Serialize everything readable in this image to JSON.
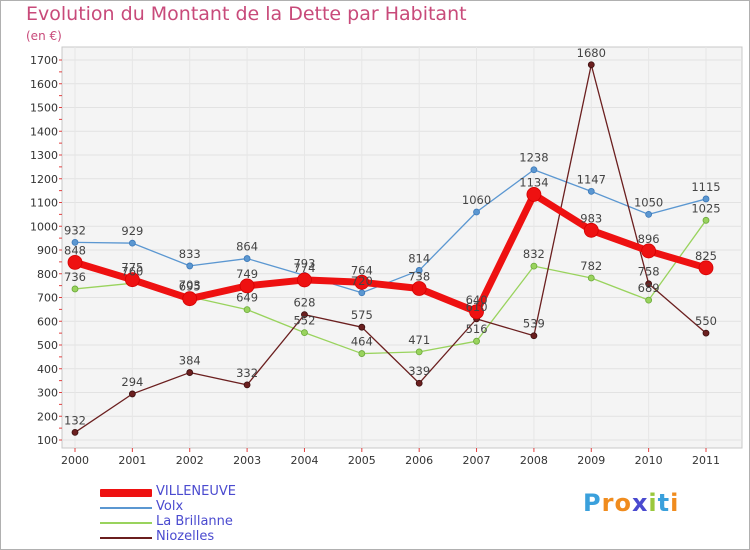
{
  "chart_data": {
    "type": "line",
    "title": "Evolution du Montant de la Dette par Habitant",
    "subtitle": "(en €)",
    "xlabel": "",
    "ylabel": "",
    "categories": [
      "2000",
      "2001",
      "2002",
      "2003",
      "2004",
      "2005",
      "2006",
      "2007",
      "2008",
      "2009",
      "2010",
      "2011"
    ],
    "ylim": [
      100,
      1700
    ],
    "yticks": [
      100,
      200,
      300,
      400,
      500,
      600,
      700,
      800,
      900,
      1000,
      1100,
      1200,
      1300,
      1400,
      1500,
      1600,
      1700
    ],
    "grid": true,
    "legend_position": "bottom-left",
    "series": [
      {
        "name": "Volx",
        "color": "#5b97d1",
        "values": [
          932,
          929,
          833,
          864,
          793,
          720,
          814,
          1060,
          1238,
          1147,
          1050,
          1115
        ],
        "labels": [
          "932",
          "929",
          "833",
          "864",
          "793",
          "720",
          "814",
          "1060",
          "1238",
          "1147",
          "1050",
          "1115"
        ]
      },
      {
        "name": "La Brillanne",
        "color": "#99d35d",
        "values": [
          736,
          760,
          703,
          649,
          552,
          464,
          471,
          516,
          832,
          782,
          689,
          1025
        ],
        "labels": [
          "736",
          "760",
          "703",
          "649",
          "552",
          "464",
          "471",
          "516",
          "832",
          "782",
          "689",
          "1025"
        ]
      },
      {
        "name": "Niozelles",
        "color": "#6b1f1f",
        "values": [
          132,
          294,
          384,
          332,
          628,
          575,
          339,
          610,
          539,
          1680,
          758,
          550
        ],
        "labels": [
          "132",
          "294",
          "384",
          "332",
          "628",
          "575",
          "339",
          "610",
          "539",
          "1680",
          "758",
          "550"
        ]
      },
      {
        "name": "VILLENEUVE",
        "color": "#ee1111",
        "values": [
          848,
          775,
          695,
          749,
          774,
          764,
          738,
          640,
          1134,
          983,
          896,
          825
        ],
        "labels": [
          "848",
          "775",
          "695",
          "749",
          "774",
          "764",
          "738",
          "640",
          "1134",
          "983",
          "896",
          "825"
        ]
      }
    ],
    "legend_order": [
      "VILLENEUVE",
      "Volx",
      "La Brillanne",
      "Niozelles"
    ]
  },
  "legend": {
    "items": [
      {
        "label": "VILLENEUVE",
        "color": "#ee1111"
      },
      {
        "label": "Volx",
        "color": "#5b97d1"
      },
      {
        "label": "La Brillanne",
        "color": "#99d35d"
      },
      {
        "label": "Niozelles",
        "color": "#6b1f1f"
      }
    ]
  },
  "brand": {
    "logo_text": "Proxiti",
    "letters": [
      "P",
      "r",
      "o",
      "x",
      "i",
      "t",
      "i"
    ],
    "letter_colors": [
      "#3aa0dc",
      "#f08c1e",
      "#f08c1e",
      "#4a4acf",
      "#9ac83c",
      "#3aa0dc",
      "#f08c1e"
    ]
  }
}
